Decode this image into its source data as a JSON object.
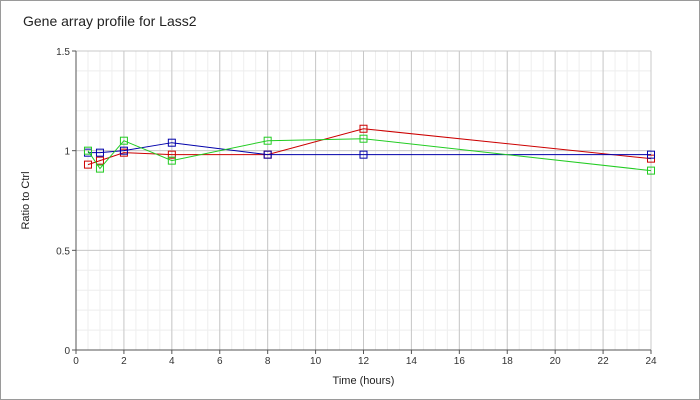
{
  "chart_data": {
    "type": "line",
    "title": "Gene array profile for Lass2",
    "xlabel": "Time (hours)",
    "ylabel": "Ratio to Ctrl",
    "xlim": [
      0,
      24
    ],
    "ylim": [
      0,
      1.5
    ],
    "x_ticks": [
      0,
      2,
      4,
      6,
      8,
      10,
      12,
      14,
      16,
      18,
      20,
      22,
      24
    ],
    "y_ticks": [
      0,
      0.5,
      1,
      1.5
    ],
    "y_tick_labels": [
      "0",
      "0.5",
      "1",
      "1.5"
    ],
    "grid": true,
    "legend": "none",
    "series": [
      {
        "color": "#cc0000",
        "x": [
          0.5,
          1,
          2,
          4,
          8,
          12,
          24
        ],
        "y": [
          0.93,
          0.95,
          0.99,
          0.98,
          0.98,
          1.11,
          0.96
        ]
      },
      {
        "color": "#0000aa",
        "x": [
          0.5,
          1,
          2,
          4,
          8,
          12,
          24
        ],
        "y": [
          0.99,
          0.99,
          1.0,
          1.04,
          0.98,
          0.98,
          0.98
        ]
      },
      {
        "color": "#22cc22",
        "x": [
          0.5,
          1,
          2,
          4,
          8,
          12,
          24
        ],
        "y": [
          1.0,
          0.91,
          1.05,
          0.95,
          1.05,
          1.06,
          0.9
        ]
      }
    ]
  }
}
